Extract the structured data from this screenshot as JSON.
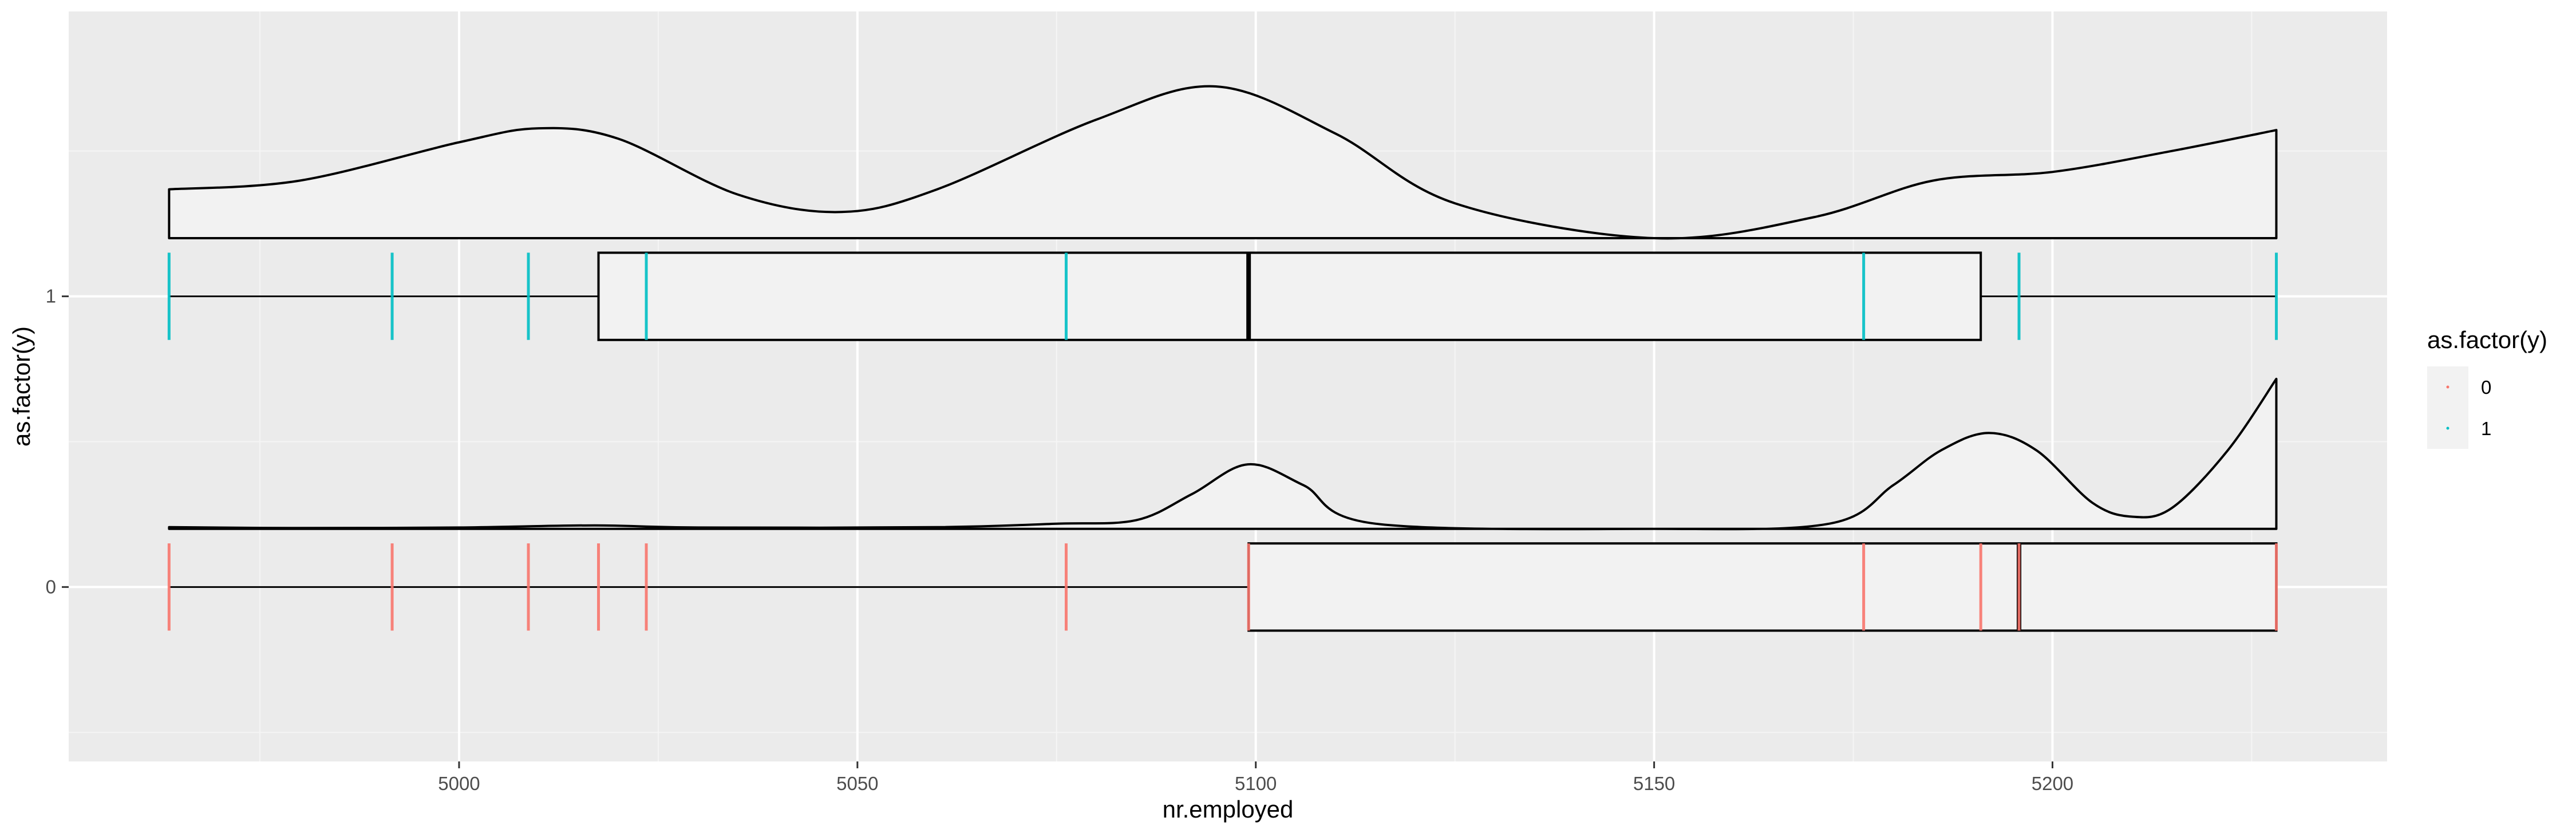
{
  "chart_data": {
    "type": "raincloud",
    "xlabel": "nr.employed",
    "ylabel": "as.factor(y)",
    "xlim": [
      4951,
      5242
    ],
    "ylim": [
      -0.6,
      1.98
    ],
    "x_ticks": [
      5000,
      5050,
      5100,
      5150,
      5200
    ],
    "x_tick_labels": [
      "5000",
      "5050",
      "5100",
      "5150",
      "5200"
    ],
    "categories": [
      "0",
      "1"
    ],
    "grid": true,
    "legend": {
      "title": "as.factor(y)",
      "position": "right",
      "entries": [
        {
          "label": "0",
          "color": "#F8766D"
        },
        {
          "label": "1",
          "color": "#00BFC4"
        }
      ]
    },
    "series": [
      {
        "name": "0",
        "color": "#F8766D",
        "observed_values": [
          4963.6,
          4991.6,
          5008.7,
          5017.5,
          5023.5,
          5076.2,
          5099.1,
          5176.3,
          5191.0,
          5195.8,
          5228.1
        ],
        "boxplot": {
          "min": 4963.6,
          "q1": 5099.1,
          "median": 5195.8,
          "q3": 5228.1,
          "max": 5228.1
        },
        "density_profile": [
          [
            4963.6,
            0.01
          ],
          [
            4980,
            0.005
          ],
          [
            5000,
            0.008
          ],
          [
            5017,
            0.02
          ],
          [
            5030,
            0.008
          ],
          [
            5060,
            0.01
          ],
          [
            5075,
            0.03
          ],
          [
            5085,
            0.05
          ],
          [
            5092,
            0.2
          ],
          [
            5099,
            0.37
          ],
          [
            5106,
            0.25
          ],
          [
            5115,
            0.03
          ],
          [
            5150,
            0.0
          ],
          [
            5172,
            0.03
          ],
          [
            5180,
            0.25
          ],
          [
            5186,
            0.45
          ],
          [
            5192,
            0.55
          ],
          [
            5198,
            0.45
          ],
          [
            5205,
            0.15
          ],
          [
            5210,
            0.07
          ],
          [
            5215,
            0.12
          ],
          [
            5222,
            0.45
          ],
          [
            5228.1,
            0.86
          ]
        ]
      },
      {
        "name": "1",
        "color": "#00BFC4",
        "observed_values": [
          4963.6,
          4991.6,
          5008.7,
          5023.5,
          5076.2,
          5176.3,
          5195.8,
          5228.1
        ],
        "boxplot": {
          "min": 4963.6,
          "q1": 5017.5,
          "median": 5099.1,
          "q3": 5191.0,
          "max": 5228.1
        },
        "density_profile": [
          [
            4963.6,
            0.28
          ],
          [
            4980,
            0.33
          ],
          [
            5000,
            0.55
          ],
          [
            5010,
            0.63
          ],
          [
            5020,
            0.57
          ],
          [
            5035,
            0.25
          ],
          [
            5048,
            0.15
          ],
          [
            5060,
            0.28
          ],
          [
            5080,
            0.68
          ],
          [
            5095,
            0.87
          ],
          [
            5110,
            0.6
          ],
          [
            5125,
            0.2
          ],
          [
            5150,
            0.0
          ],
          [
            5170,
            0.12
          ],
          [
            5185,
            0.33
          ],
          [
            5200,
            0.38
          ],
          [
            5215,
            0.5
          ],
          [
            5228.1,
            0.62
          ]
        ]
      }
    ]
  }
}
